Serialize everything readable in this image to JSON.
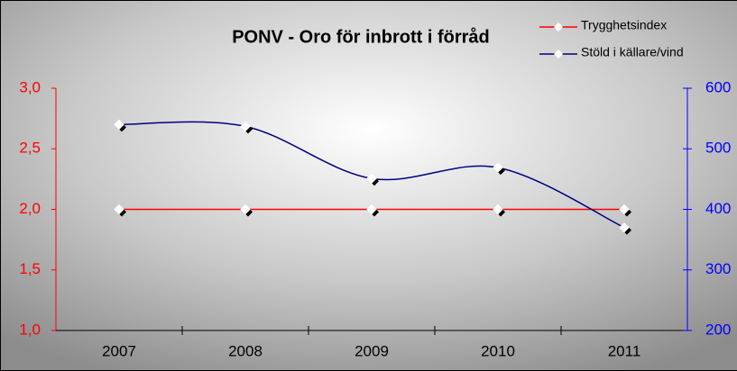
{
  "chart_data": {
    "type": "line",
    "title": "PONV - Oro för inbrott i förråd",
    "categories": [
      "2007",
      "2008",
      "2009",
      "2010",
      "2011"
    ],
    "series": [
      {
        "name": "Trygghetsindex",
        "color": "#ff0000",
        "values": [
          2.0,
          2.0,
          2.0,
          2.0,
          2.0
        ]
      },
      {
        "name": "Stöld i källare/vind",
        "color": "#000080",
        "axis": "y2",
        "values": [
          540,
          537,
          451,
          469,
          370
        ]
      }
    ],
    "ylim": [
      1.0,
      3.0
    ],
    "yticks": [
      {
        "value": 1.0,
        "label": "1,0"
      },
      {
        "value": 1.5,
        "label": "1,5"
      },
      {
        "value": 2.0,
        "label": "2,0"
      },
      {
        "value": 2.5,
        "label": "2,5"
      },
      {
        "value": 3.0,
        "label": "3,0"
      }
    ],
    "y_color": "#ff0000",
    "y2lim": [
      200,
      600
    ],
    "y2ticks": [
      200,
      300,
      400,
      500,
      600
    ],
    "y2_color": "#0000ff",
    "legend": "top-right"
  }
}
